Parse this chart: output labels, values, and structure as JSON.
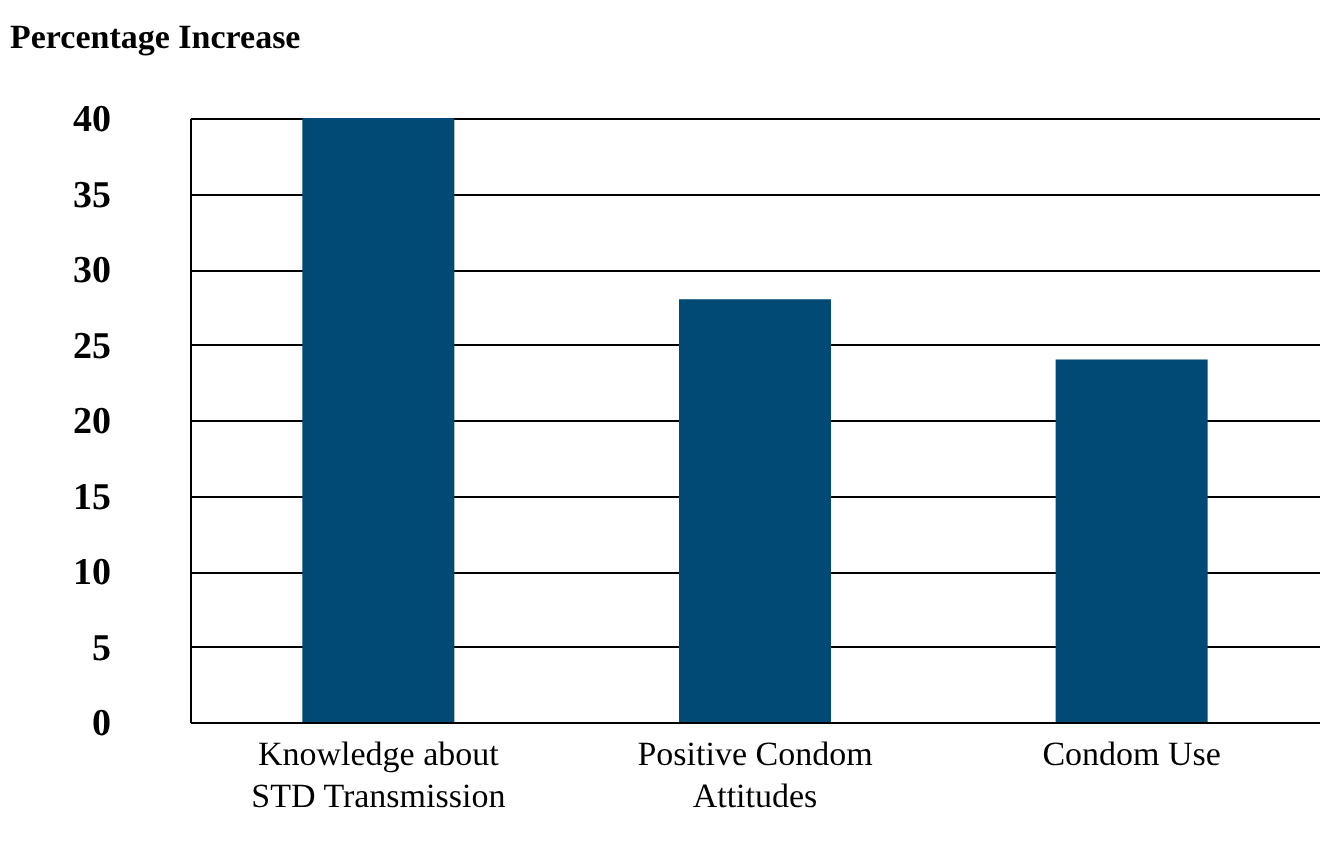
{
  "chart_data": {
    "type": "bar",
    "title": "Percentage Increase",
    "categories": [
      "Knowledge about STD Transmission",
      "Positive Condom Attitudes",
      "Condom Use"
    ],
    "values": [
      40,
      28,
      24
    ],
    "color": "#004a75",
    "ylim": [
      0,
      40
    ],
    "yticks": [
      0,
      5,
      10,
      15,
      20,
      25,
      30,
      35,
      40
    ],
    "grid": "y"
  }
}
